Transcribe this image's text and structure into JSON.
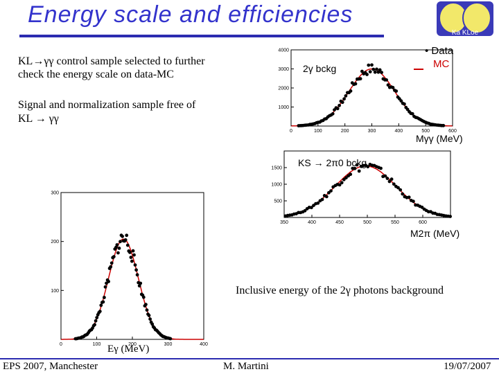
{
  "slide": {
    "title": "Energy scale and efficiencies",
    "text1_line1": "KL→γγ control sample selected to further",
    "text1_line2": "check the energy scale on data-MC",
    "text2_line1": "Signal and normalization sample free of",
    "text2_line2": "KL → γγ",
    "caption": "Inclusive energy of the 2γ photons background"
  },
  "logo": {
    "text": "Ka KLoe"
  },
  "footer": {
    "left": "EPS 2007, Manchester",
    "center": "M. Martini",
    "right": "19/07/2007"
  },
  "colors": {
    "title": "#3333cc",
    "rule": "#2b2bb0",
    "mc": "#cc0000",
    "data": "#000000"
  },
  "chart_data": [
    {
      "type": "scatter",
      "annotation": "2γ bckg",
      "legend": [
        "• Data",
        "MC"
      ],
      "xlabel": "Mγγ (MeV)",
      "ylabel": "",
      "xlim": [
        0,
        600
      ],
      "ylim": [
        0,
        4000
      ],
      "xticks": [
        "0",
        "100",
        "200",
        "300",
        "400",
        "500",
        "600"
      ],
      "yticks": [
        "1000",
        "2000",
        "3000",
        "4000"
      ],
      "shape": {
        "mean": 300,
        "sigma": 85,
        "peak": 3000
      }
    },
    {
      "type": "scatter",
      "annotation": "KS → 2π0 bckg",
      "xlabel": "M2π (MeV)",
      "ylabel": "",
      "xlim": [
        350,
        650
      ],
      "ylim": [
        0,
        2000
      ],
      "xticks": [
        "350",
        "400",
        "450",
        "500",
        "550",
        "600"
      ],
      "yticks": [
        "500",
        "1000",
        "1500"
      ],
      "shape": {
        "mean": 497,
        "sigma": 55,
        "peak": 1550
      }
    },
    {
      "type": "scatter",
      "annotation": "",
      "xlabel": "Eγ (MeV)",
      "ylabel": "",
      "xlim": [
        0,
        400
      ],
      "ylim": [
        0,
        300
      ],
      "xticks": [
        "0",
        "100",
        "200",
        "300",
        "400"
      ],
      "yticks": [
        "100",
        "200",
        "300"
      ],
      "shape": {
        "mean": 175,
        "sigma": 42,
        "peak": 205
      }
    }
  ]
}
